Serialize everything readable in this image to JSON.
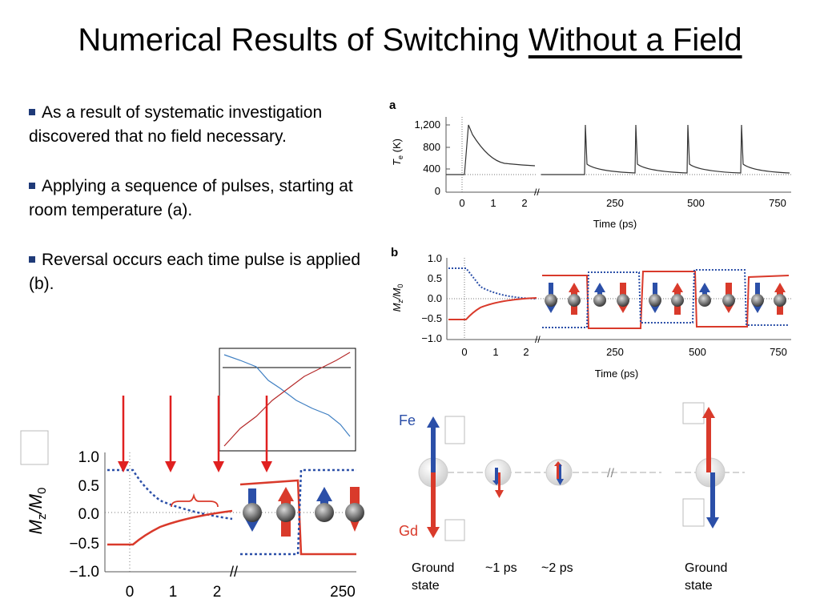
{
  "slide": {
    "title_main": "Numerical Results of Switching ",
    "title_underlined": "Without a Field",
    "bullets": [
      "As a result of systematic investigation discovered that no field necessary.",
      "Applying a sequence of pulses, starting at room temperature (a).",
      "Reversal occurs each time pulse is applied (b)."
    ]
  },
  "figure": {
    "panel_a": {
      "label": "a",
      "ylabel_main": "T",
      "ylabel_sub": "e",
      "ylabel_unit": " (K)",
      "yticks": [
        "1,200",
        "800",
        "400",
        "0"
      ],
      "xticks": [
        "0",
        "1",
        "2",
        "250",
        "500",
        "750"
      ],
      "xlabel": "Time (ps)"
    },
    "panel_b": {
      "label": "b",
      "ylabel_main": "M",
      "ylabel_sub": "z",
      "ylabel_tail": "/M",
      "ylabel_sub2": "0",
      "yticks": [
        "1.0",
        "0.5",
        "0.0",
        "−0.5",
        "−1.0"
      ],
      "xticks": [
        "0",
        "1",
        "2",
        "250",
        "500",
        "750"
      ],
      "xlabel": "Time (ps)"
    },
    "zoom": {
      "ylabel_main": "M",
      "ylabel_sub": "z",
      "ylabel_tail": "/M",
      "ylabel_sub2": "0",
      "yticks": [
        "1.0",
        "0.5",
        "0.0",
        "−0.5",
        "−1.0"
      ],
      "xticks": [
        "0",
        "1",
        "2",
        "250"
      ]
    },
    "schematic": {
      "fe_label": "Fe",
      "gd_label": "Gd",
      "stages": [
        "Ground state",
        "~1 ps",
        "~2 ps",
        "Ground state"
      ]
    },
    "colors": {
      "fe": "#2b4fa8",
      "gd": "#d93a2b",
      "trace": "#333333"
    }
  }
}
